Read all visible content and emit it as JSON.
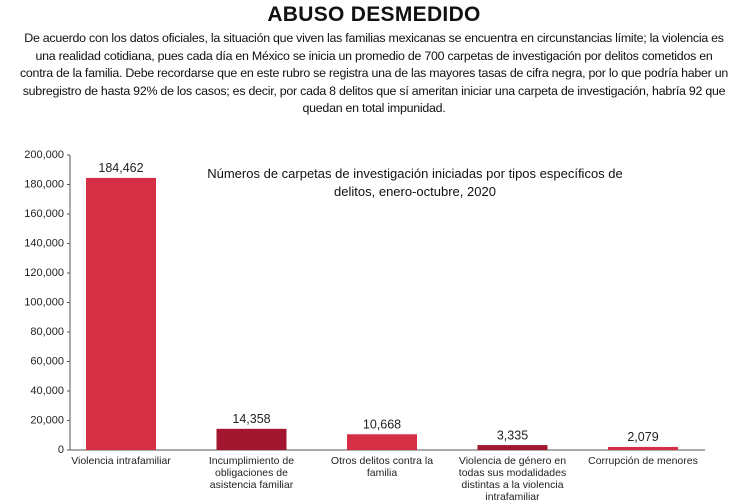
{
  "header": {
    "title": "ABUSO DESMEDIDO",
    "text": "De acuerdo con los datos oficiales, la situación que viven las familias mexicanas se encuentra en circunstancias límite; la violencia es una realidad cotidiana, pues cada día en México se inicia un promedio de 700 carpetas de investigación por delitos cometidos en contra de la familia. Debe recordarse que en este rubro se registra una de las mayores tasas de cifra negra, por lo que podría haber un subregistro de hasta 92% de los casos; es decir, por cada 8 delitos que sí ameritan iniciar una carpeta de investigación, habría 92 que quedan en total impunidad."
  },
  "chart_data": {
    "type": "bar",
    "title": "Números de carpetas de investigación iniciadas por tipos específicos de delitos, enero-octubre, 2020",
    "categories": [
      "Violencia intrafamiliar",
      "Incumplimiento de obligaciones de asistencia familiar",
      "Otros delitos contra la familia",
      "Violencia de género en todas sus modalidades distintas a la violencia intrafamiliar",
      "Corrupción de menores"
    ],
    "values": [
      184462,
      14358,
      10668,
      3335,
      2079
    ],
    "value_labels": [
      "184,462",
      "14,358",
      "10,668",
      "3,335",
      "2,079"
    ],
    "colors": [
      "#d62e45",
      "#a3162f",
      "#d62e45",
      "#a3162f",
      "#d62e45"
    ],
    "ylim": [
      0,
      200000
    ],
    "yticks": [
      0,
      {
        "value": 20000,
        "label": "20,000"
      },
      {
        "value": 40000,
        "label": "40,000"
      },
      {
        "value": 60000,
        "label": "60,000"
      },
      {
        "value": 80000,
        "label": "80,000"
      },
      {
        "value": 100000,
        "label": "100,000"
      },
      {
        "value": 120000,
        "label": "120,000"
      },
      {
        "value": 140000,
        "label": "140,000"
      },
      {
        "value": 160000,
        "label": "160,000"
      },
      {
        "value": 180000,
        "label": "180,000"
      },
      {
        "value": 200000,
        "label": "200,000"
      }
    ]
  }
}
